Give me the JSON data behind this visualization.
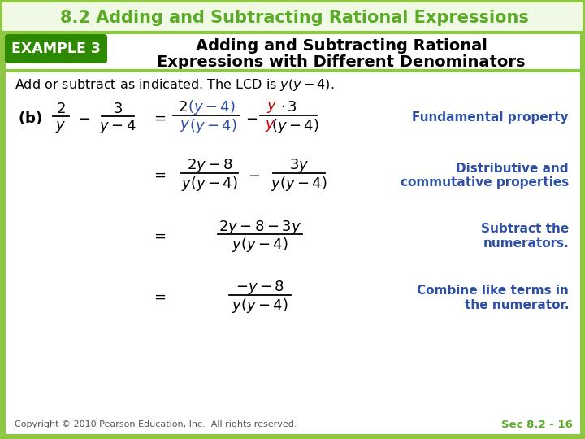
{
  "title": "8.2 Adding and Subtracting Rational Expressions",
  "title_color": "#5aaa28",
  "example_label": "EXAMPLE 3",
  "example_bg": "#2d8a00",
  "example_text_color": "#ffffff",
  "subtitle1": "Adding and Subtracting Rational",
  "subtitle2": "Expressions with Different Denominators",
  "border_color": "#8dc63f",
  "bg_color": "#ffffff",
  "blue_color": "#2e4fa3",
  "red_color": "#cc0000",
  "green_color": "#5aaa28",
  "black_color": "#000000",
  "gray_color": "#555555",
  "copyright": "Copyright © 2010 Pearson Education, Inc.  All rights reserved.",
  "sec_label": "Sec 8.2 - 16",
  "title_bg": "#f5fbee",
  "header_bg": "#ffffff"
}
